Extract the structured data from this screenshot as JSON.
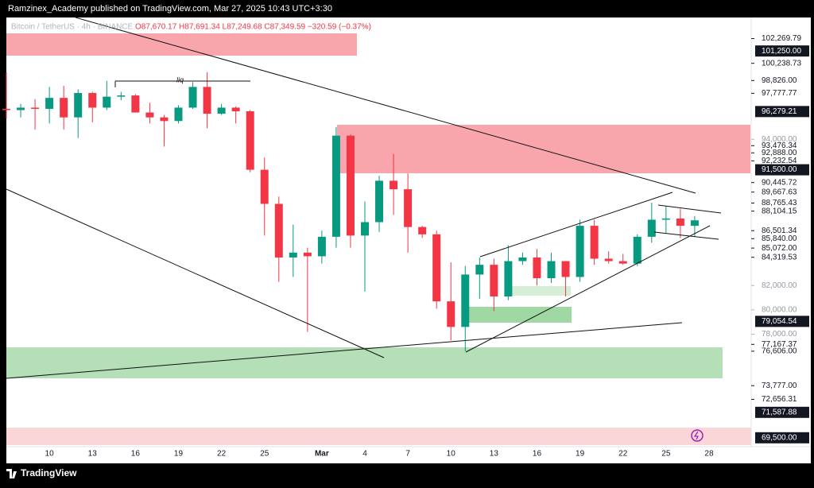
{
  "header": {
    "publisher": "Ramzinex_Academy published on TradingView.com, Mar 27, 2025 10:43 UTC+3:30",
    "footer": "TradingView"
  },
  "chart_data": {
    "type": "candlestick",
    "symbol": "Bitcoin / TetherUS · 4h · BINANCE",
    "ohlc_text": "O87,670.17 H87,691.34 L87,249.68 C87,349.59 −320.59 (−0.37%)",
    "annotations": [
      "liq"
    ],
    "categories": [
      null,
      null,
      null,
      "10",
      null,
      null,
      "13",
      null,
      null,
      "16",
      null,
      null,
      "19",
      null,
      null,
      "22",
      null,
      null,
      "25",
      null,
      null,
      null,
      "Mar",
      null,
      null,
      "4",
      null,
      null,
      "7",
      null,
      null,
      "10",
      null,
      null,
      "13",
      null,
      null,
      "16",
      null,
      null,
      "19",
      null,
      null,
      "22",
      null,
      null,
      "25",
      null,
      null,
      "28"
    ],
    "open": [
      96500,
      96400,
      96600,
      96500,
      97400,
      95800,
      97800,
      96600,
      97500,
      97600,
      96200,
      95800,
      95500,
      96600,
      98300,
      96100,
      96600,
      96300,
      91500,
      88700,
      84300,
      84700,
      84400,
      86000,
      94300,
      86100,
      87200,
      90600,
      89900,
      86800,
      86200,
      80700,
      78600,
      82900,
      83700,
      81100,
      84000,
      84300,
      82600,
      84000,
      82700,
      86900,
      84200,
      84000,
      83800,
      86000,
      87400,
      87500,
      86900,
      null
    ],
    "high": [
      99500,
      96900,
      97300,
      98300,
      98400,
      98100,
      97900,
      98800,
      97900,
      97700,
      97000,
      96000,
      96800,
      98700,
      99500,
      96900,
      96700,
      96400,
      92500,
      89300,
      87000,
      85100,
      86500,
      95000,
      94400,
      88900,
      91000,
      92800,
      91200,
      86900,
      86500,
      83900,
      83600,
      84300,
      84200,
      85300,
      84700,
      85000,
      84700,
      84000,
      87400,
      87400,
      84800,
      84600,
      86200,
      88800,
      88500,
      88300,
      87700,
      null
    ],
    "low": [
      95700,
      95800,
      94800,
      95300,
      94800,
      94100,
      95400,
      96400,
      97200,
      96200,
      95300,
      93400,
      95300,
      96500,
      94900,
      96000,
      95300,
      91300,
      86100,
      82300,
      82700,
      78200,
      83800,
      85100,
      85100,
      81500,
      86400,
      87800,
      84700,
      85900,
      80100,
      77500,
      76600,
      80900,
      79900,
      80800,
      83700,
      82000,
      82200,
      81100,
      82300,
      83700,
      83800,
      83700,
      83600,
      85500,
      86300,
      85900,
      86000,
      null
    ],
    "close": [
      96400,
      96600,
      96500,
      97400,
      95800,
      97800,
      96600,
      97500,
      97600,
      96200,
      95800,
      95500,
      96600,
      98300,
      96100,
      96600,
      96300,
      91500,
      88700,
      84300,
      84700,
      84400,
      86000,
      94300,
      86100,
      87200,
      90600,
      89900,
      86800,
      86200,
      80700,
      78600,
      82900,
      83700,
      81100,
      84000,
      84300,
      82600,
      84000,
      82700,
      86900,
      84200,
      84000,
      83800,
      86000,
      87400,
      87500,
      86900,
      87350,
      null
    ],
    "up_color": "#089981",
    "down_color": "#f23645",
    "ylim": [
      68900,
      104000
    ],
    "yticks": [
      {
        "value": 94000,
        "label": "94,000.00"
      },
      {
        "value": 82000,
        "label": "82,000.00"
      },
      {
        "value": 80000,
        "label": "80,000.00"
      },
      {
        "value": 78000,
        "label": "78,000.00"
      }
    ],
    "grid": false,
    "price_labels": [
      {
        "value": 102269.79,
        "label": "102,269.79",
        "boxed": false
      },
      {
        "value": 101250,
        "label": "101,250.00",
        "boxed": true
      },
      {
        "value": 100238.73,
        "label": "100,238.73",
        "boxed": false
      },
      {
        "value": 98826,
        "label": "98,826.00",
        "boxed": false
      },
      {
        "value": 97777.77,
        "label": "97,777.77",
        "boxed": false
      },
      {
        "value": 96279.21,
        "label": "96,279.21",
        "boxed": true
      },
      {
        "value": 93476.34,
        "label": "93,476.34",
        "boxed": false
      },
      {
        "value": 92888,
        "label": "92,888.00",
        "boxed": false
      },
      {
        "value": 92232.54,
        "label": "92,232.54",
        "boxed": false
      },
      {
        "value": 91500,
        "label": "91,500.00",
        "boxed": true
      },
      {
        "value": 90445.72,
        "label": "90,445.72",
        "boxed": false
      },
      {
        "value": 89667.63,
        "label": "89,667.63",
        "boxed": false
      },
      {
        "value": 88765.43,
        "label": "88,765.43",
        "boxed": false
      },
      {
        "value": 88104.15,
        "label": "88,104.15",
        "boxed": false
      },
      {
        "value": 86501.34,
        "label": "86,501.34",
        "boxed": false
      },
      {
        "value": 85840,
        "label": "85,840.00",
        "boxed": false
      },
      {
        "value": 85072,
        "label": "85,072.00",
        "boxed": false
      },
      {
        "value": 84319.53,
        "label": "84,319.53",
        "boxed": false
      },
      {
        "value": 79054.54,
        "label": "79,054.54",
        "boxed": true
      },
      {
        "value": 77167.37,
        "label": "77,167.37",
        "boxed": false
      },
      {
        "value": 76606,
        "label": "76,606.00",
        "boxed": false
      },
      {
        "value": 73777,
        "label": "73,777.00",
        "boxed": false
      },
      {
        "value": 72656.31,
        "label": "72,656.31",
        "boxed": false
      },
      {
        "value": 71587.88,
        "label": "71,587.88",
        "boxed": true
      },
      {
        "value": 69500,
        "label": "69,500.00",
        "boxed": true
      }
    ]
  }
}
